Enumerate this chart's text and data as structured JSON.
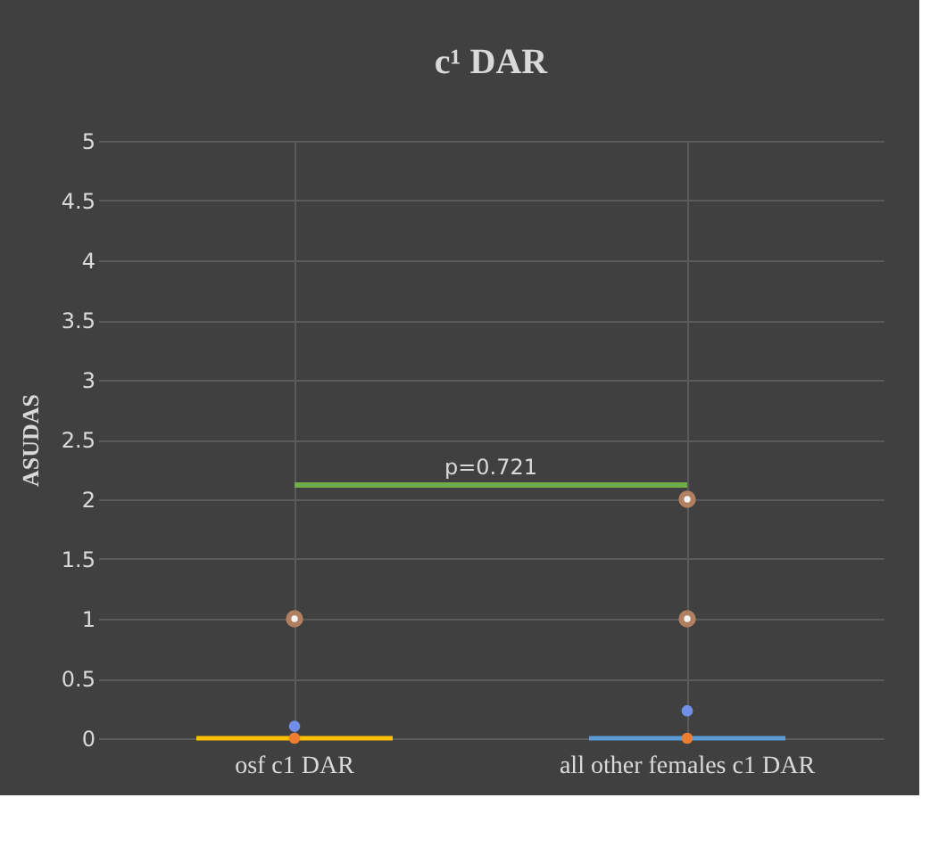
{
  "chart_data": {
    "type": "box",
    "title": "c¹ DAR",
    "ylabel": "ASUDAS",
    "categories": [
      "osf c1 DAR",
      "all other females c1 DAR"
    ],
    "colors": [
      "#ffc000",
      "#5b9bd5"
    ],
    "boxes": [
      {
        "low": 0,
        "q1": 0,
        "median": 0,
        "q3": 0,
        "high": 0,
        "mean": 0.1,
        "outliers": [
          1
        ]
      },
      {
        "low": 0,
        "q1": 0,
        "median": 0,
        "q3": 0,
        "high": 0,
        "mean": 0.23,
        "outliers": [
          1,
          2
        ]
      }
    ],
    "series": [
      {
        "type": "scatter",
        "x": [
          "osf c1 DAR",
          "all other females c1 DAR"
        ],
        "values": [
          0,
          0
        ],
        "color": "#ed7d31"
      }
    ],
    "ylim": [
      0,
      5
    ],
    "yticks": [
      0,
      0.5,
      1,
      1.5,
      2,
      2.5,
      3,
      3.5,
      4,
      4.5,
      5
    ],
    "grid": true,
    "annotations": [
      "p=0.721"
    ]
  }
}
